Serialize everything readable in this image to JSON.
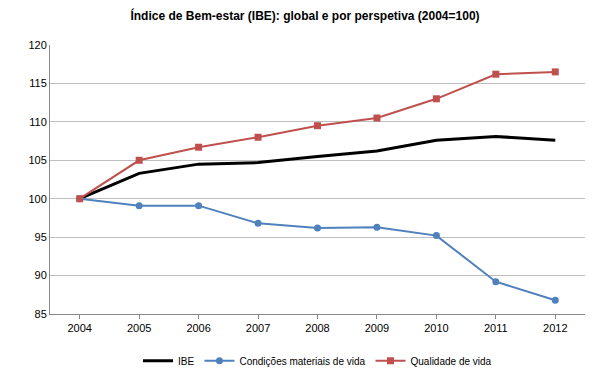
{
  "chart_data": {
    "type": "line",
    "title": "Índice de Bem-estar (IBE): global e por perspetiva (2004=100)",
    "categories": [
      "2004",
      "2005",
      "2006",
      "2007",
      "2008",
      "2009",
      "2010",
      "2011",
      "2012"
    ],
    "series": [
      {
        "name": "IBE",
        "color": "#000000",
        "marker": "none",
        "line_style": "solid",
        "values": [
          100,
          103.3,
          104.5,
          104.7,
          105.5,
          106.2,
          107.6,
          108.1,
          107.6
        ]
      },
      {
        "name": "Condições materiais de vida",
        "color": "#4f81bd",
        "marker": "circle",
        "line_style": "solid",
        "values": [
          100,
          99.1,
          99.1,
          96.8,
          96.2,
          96.3,
          95.2,
          89.2,
          86.8
        ]
      },
      {
        "name": "Qualidade de vida",
        "color": "#c0504d",
        "marker": "square",
        "line_style": "solid",
        "values": [
          100,
          105,
          106.7,
          108,
          109.5,
          110.5,
          113,
          116.2,
          116.5
        ]
      }
    ],
    "ylim": [
      85,
      120
    ],
    "yticks": [
      85,
      90,
      95,
      100,
      105,
      110,
      115,
      120
    ],
    "grid": true,
    "legend": "bottom"
  }
}
